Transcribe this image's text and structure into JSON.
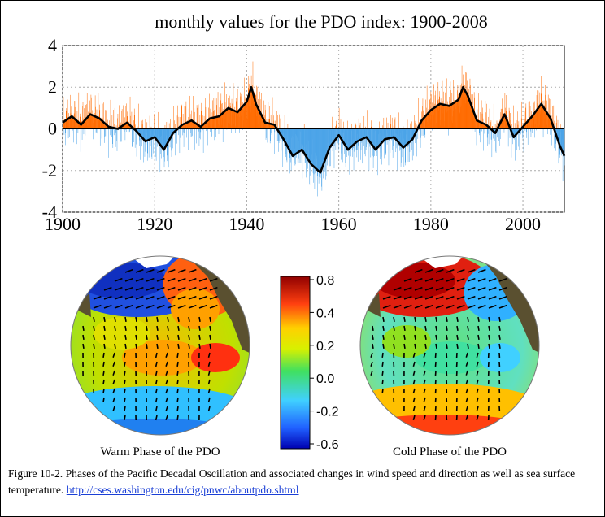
{
  "chart_data": [
    {
      "type": "bar",
      "title": "monthly values for the PDO index: 1900-2008",
      "xlabel": "",
      "ylabel": "",
      "xlim": [
        1900,
        2009
      ],
      "ylim": [
        -4,
        4
      ],
      "xticks": [
        "1900",
        "1920",
        "1940",
        "1960",
        "1980",
        "2000"
      ],
      "yticks": [
        "4",
        "2",
        "0",
        "-2",
        "-4"
      ],
      "grid": true,
      "colors": {
        "positive": "#ff6a00",
        "negative": "#4aa3e8",
        "smoothed": "#000000"
      },
      "series": [
        {
          "type": "line",
          "x": [
            1900,
            1902,
            1904,
            1906,
            1908,
            1910,
            1912,
            1914,
            1916,
            1918,
            1920,
            1922,
            1924,
            1926,
            1928,
            1930,
            1932,
            1934,
            1936,
            1938,
            1940,
            1941,
            1942,
            1944,
            1946,
            1948,
            1950,
            1952,
            1954,
            1956,
            1958,
            1960,
            1962,
            1964,
            1966,
            1968,
            1970,
            1972,
            1974,
            1976,
            1978,
            1980,
            1982,
            1984,
            1986,
            1987,
            1988,
            1990,
            1992,
            1994,
            1996,
            1998,
            2000,
            2002,
            2004,
            2006,
            2008,
            2009
          ],
          "values": [
            0.3,
            0.6,
            0.2,
            0.7,
            0.5,
            0.1,
            0.0,
            0.3,
            -0.1,
            -0.6,
            -0.4,
            -1.0,
            -0.2,
            0.2,
            0.4,
            0.1,
            0.5,
            0.6,
            1.0,
            0.8,
            1.3,
            2.0,
            1.2,
            0.3,
            0.2,
            -0.5,
            -1.3,
            -1.0,
            -1.7,
            -2.1,
            -0.9,
            -0.3,
            -1.0,
            -0.6,
            -0.4,
            -1.0,
            -0.5,
            -0.4,
            -0.9,
            -0.5,
            0.4,
            0.9,
            1.2,
            1.1,
            1.4,
            2.0,
            1.6,
            0.4,
            0.2,
            -0.2,
            0.7,
            -0.4,
            0.1,
            0.6,
            1.2,
            0.5,
            -0.8,
            -1.3
          ]
        }
      ]
    },
    {
      "type": "heatmap",
      "colorbar_ticks": [
        "0.8",
        "0.4",
        "0.2",
        "0.0",
        "-0.2",
        "-0.6"
      ],
      "panels": [
        "Warm Phase of the PDO",
        "Cold Phase of the PDO"
      ]
    }
  ],
  "caption": {
    "text": "Figure 10-2.  Phases of the Pacific Decadal Oscillation and associated changes in wind speed and direction as well as sea surface temperature.  ",
    "link": "http://cses.washington.edu/cig/pnwc/aboutpdo.shtml"
  }
}
